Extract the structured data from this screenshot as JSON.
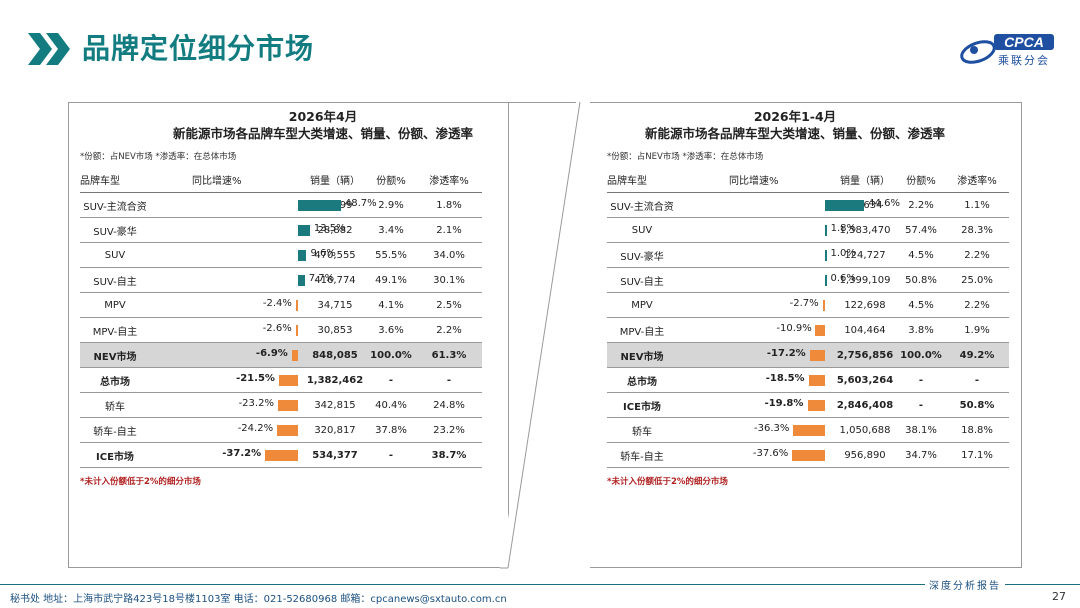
{
  "header": {
    "title": "品牌定位细分市场",
    "logo_text": "CPCA",
    "logo_cn": "乘联分会"
  },
  "colors": {
    "accent": "#137c80",
    "positive_bar": "#1b7a7d",
    "negative_bar": "#ef8a3a",
    "highlight_row": "#d6d6d6"
  },
  "chart_data": [
    {
      "type": "table",
      "title": "2026年4月",
      "subtitle": "新能源市场各品牌车型大类增速、销量、份额、渗透率",
      "note": "*份额：占NEV市场   *渗透率：在总体市场",
      "footnote": "*未计入份额低于2%的细分市场",
      "columns": [
        "品牌车型",
        "同比增速%",
        "销量（辆）",
        "份额%",
        "渗透率%"
      ],
      "rows": [
        {
          "name": "SUV-主流合资",
          "growth": 48.7,
          "growth_label": "48.7%",
          "sales": "24,899",
          "share": "2.9%",
          "pen": "1.8%",
          "bold": false,
          "hl": false
        },
        {
          "name": "SUV-豪华",
          "growth": 13.5,
          "growth_label": "13.5%",
          "sales": "28,882",
          "share": "3.4%",
          "pen": "2.1%",
          "bold": false,
          "hl": false
        },
        {
          "name": "SUV",
          "growth": 9.6,
          "growth_label": "9.6%",
          "sales": "470,555",
          "share": "55.5%",
          "pen": "34.0%",
          "bold": false,
          "hl": false
        },
        {
          "name": "SUV-自主",
          "growth": 7.7,
          "growth_label": "7.7%",
          "sales": "416,774",
          "share": "49.1%",
          "pen": "30.1%",
          "bold": false,
          "hl": false
        },
        {
          "name": "MPV",
          "growth": -2.4,
          "growth_label": "-2.4%",
          "sales": "34,715",
          "share": "4.1%",
          "pen": "2.5%",
          "bold": false,
          "hl": false
        },
        {
          "name": "MPV-自主",
          "growth": -2.6,
          "growth_label": "-2.6%",
          "sales": "30,853",
          "share": "3.6%",
          "pen": "2.2%",
          "bold": false,
          "hl": false
        },
        {
          "name": "NEV市场",
          "growth": -6.9,
          "growth_label": "-6.9%",
          "sales": "848,085",
          "share": "100.0%",
          "pen": "61.3%",
          "bold": true,
          "hl": true
        },
        {
          "name": "总市场",
          "growth": -21.5,
          "growth_label": "-21.5%",
          "sales": "1,382,462",
          "share": "-",
          "pen": "-",
          "bold": true,
          "hl": false
        },
        {
          "name": "轿车",
          "growth": -23.2,
          "growth_label": "-23.2%",
          "sales": "342,815",
          "share": "40.4%",
          "pen": "24.8%",
          "bold": false,
          "hl": false
        },
        {
          "name": "轿车-自主",
          "growth": -24.2,
          "growth_label": "-24.2%",
          "sales": "320,817",
          "share": "37.8%",
          "pen": "23.2%",
          "bold": false,
          "hl": false
        },
        {
          "name": "ICE市场",
          "growth": -37.2,
          "growth_label": "-37.2%",
          "sales": "534,377",
          "share": "-",
          "pen": "38.7%",
          "bold": true,
          "hl": false
        }
      ]
    },
    {
      "type": "table",
      "title": "2026年1-4月",
      "subtitle": "新能源市场各品牌车型大类增速、销量、份额、渗透率",
      "note": "*份额：占NEV市场   *渗透率：在总体市场",
      "footnote": "*未计入份额低于2%的细分市场",
      "columns": [
        "品牌车型",
        "同比增速%",
        "销量（辆）",
        "份额%",
        "渗透率%"
      ],
      "rows": [
        {
          "name": "SUV-主流合资",
          "growth": 44.6,
          "growth_label": "44.6%",
          "sales": "59,634",
          "share": "2.2%",
          "pen": "1.1%",
          "bold": false,
          "hl": false
        },
        {
          "name": "SUV",
          "growth": 1.8,
          "growth_label": "1.8%",
          "sales": "1,583,470",
          "share": "57.4%",
          "pen": "28.3%",
          "bold": false,
          "hl": false
        },
        {
          "name": "SUV-豪华",
          "growth": 1.0,
          "growth_label": "1.0%",
          "sales": "124,727",
          "share": "4.5%",
          "pen": "2.2%",
          "bold": false,
          "hl": false
        },
        {
          "name": "SUV-自主",
          "growth": 0.6,
          "growth_label": "0.6%",
          "sales": "1,399,109",
          "share": "50.8%",
          "pen": "25.0%",
          "bold": false,
          "hl": false
        },
        {
          "name": "MPV",
          "growth": -2.7,
          "growth_label": "-2.7%",
          "sales": "122,698",
          "share": "4.5%",
          "pen": "2.2%",
          "bold": false,
          "hl": false
        },
        {
          "name": "MPV-自主",
          "growth": -10.9,
          "growth_label": "-10.9%",
          "sales": "104,464",
          "share": "3.8%",
          "pen": "1.9%",
          "bold": false,
          "hl": false
        },
        {
          "name": "NEV市场",
          "growth": -17.2,
          "growth_label": "-17.2%",
          "sales": "2,756,856",
          "share": "100.0%",
          "pen": "49.2%",
          "bold": true,
          "hl": true
        },
        {
          "name": "总市场",
          "growth": -18.5,
          "growth_label": "-18.5%",
          "sales": "5,603,264",
          "share": "-",
          "pen": "-",
          "bold": true,
          "hl": false
        },
        {
          "name": "ICE市场",
          "growth": -19.8,
          "growth_label": "-19.8%",
          "sales": "2,846,408",
          "share": "-",
          "pen": "50.8%",
          "bold": true,
          "hl": false
        },
        {
          "name": "轿车",
          "growth": -36.3,
          "growth_label": "-36.3%",
          "sales": "1,050,688",
          "share": "38.1%",
          "pen": "18.8%",
          "bold": false,
          "hl": false
        },
        {
          "name": "轿车-自主",
          "growth": -37.6,
          "growth_label": "-37.6%",
          "sales": "956,890",
          "share": "34.7%",
          "pen": "17.1%",
          "bold": false,
          "hl": false
        }
      ]
    }
  ],
  "footer": {
    "contact": "秘书处   地址：上海市武宁路423号18号楼1103室  电话：021-52680968   邮箱：cpcanews@sxtauto.com.cn",
    "report_tag": "深度分析报告",
    "page": "27"
  }
}
